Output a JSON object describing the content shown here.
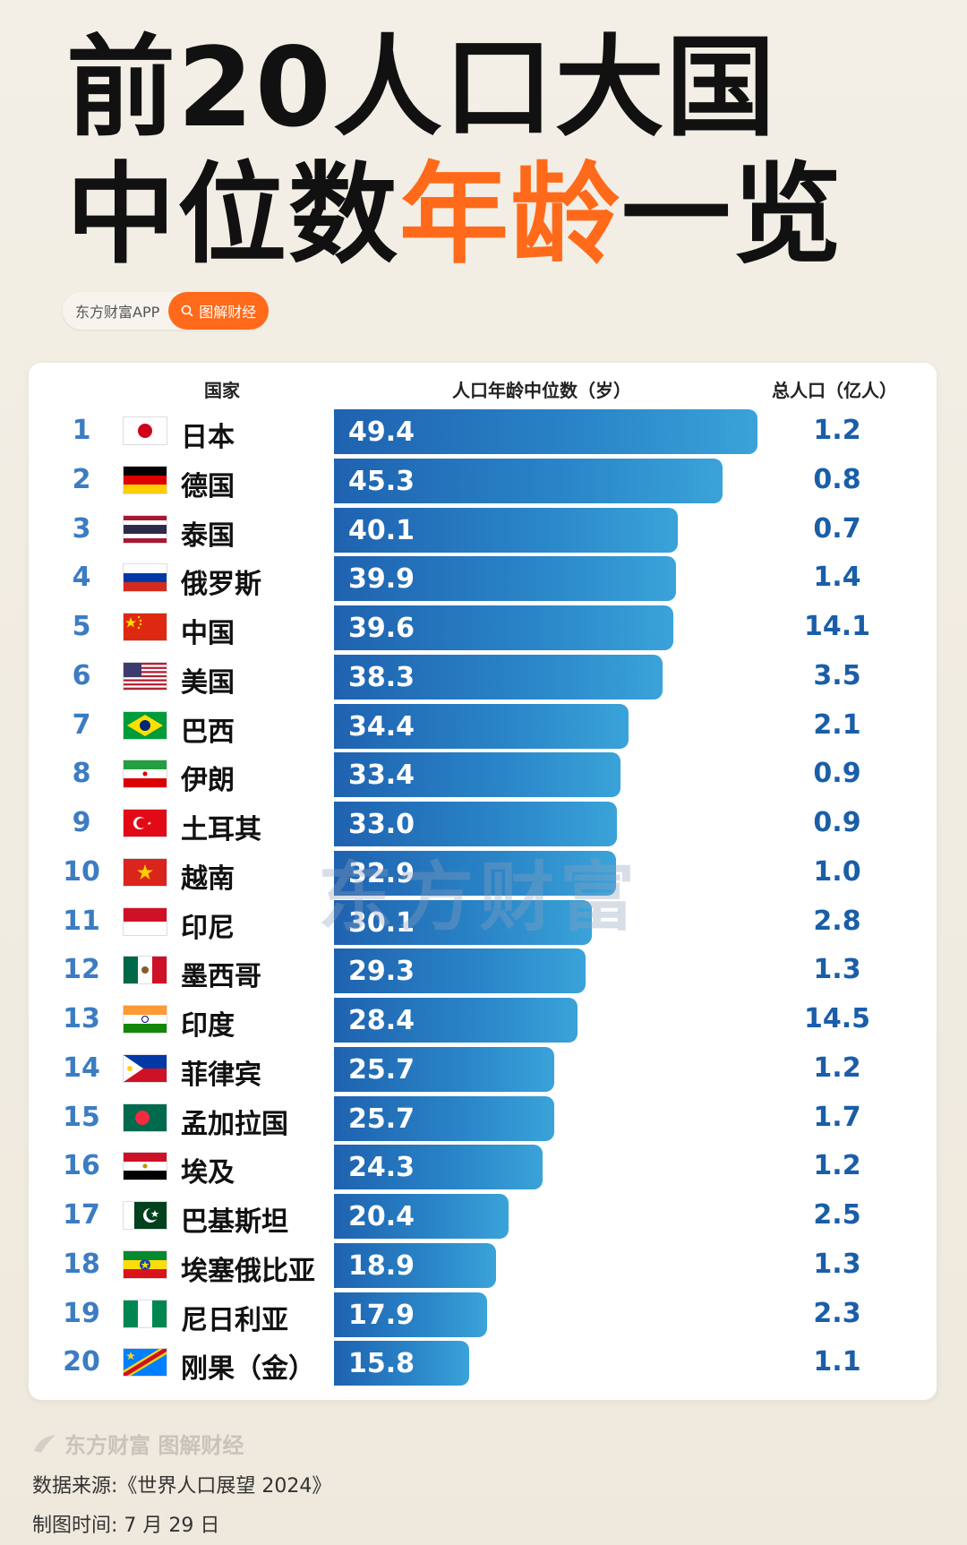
{
  "title": {
    "line1": "前20人口大国",
    "line2_a": "中位数",
    "line2_b": "年龄",
    "line2_c": "一览"
  },
  "brand": {
    "app": "东方财富APP",
    "search": "图解财经"
  },
  "headers": {
    "country": "国家",
    "median": "人口年龄中位数（岁）",
    "population": "总人口（亿人）"
  },
  "watermark": "东方财富",
  "footer": {
    "brand": "东方财富 图解财经",
    "source": "数据来源:《世界人口展望 2024》",
    "date": "制图时间: 7 月 29 日"
  },
  "colors": {
    "accent": "#ff6a1a",
    "bar_dark": "#1f62b0",
    "bar_light": "#3aa3d9",
    "rank": "#3c7cc2",
    "pop": "#1a5ea8"
  },
  "chart_data": {
    "type": "bar",
    "orientation": "horizontal",
    "title": "前20人口大国中位数年龄一览",
    "ylabel": "人口年龄中位数（岁）",
    "rows": [
      {
        "rank": "1",
        "country": "日本",
        "flag": "japan",
        "median": 49.4,
        "population": "1.2"
      },
      {
        "rank": "2",
        "country": "德国",
        "flag": "germany",
        "median": 45.3,
        "population": "0.8"
      },
      {
        "rank": "3",
        "country": "泰国",
        "flag": "thailand",
        "median": 40.1,
        "population": "0.7"
      },
      {
        "rank": "4",
        "country": "俄罗斯",
        "flag": "russia",
        "median": 39.9,
        "population": "1.4"
      },
      {
        "rank": "5",
        "country": "中国",
        "flag": "china",
        "median": 39.6,
        "population": "14.1"
      },
      {
        "rank": "6",
        "country": "美国",
        "flag": "usa",
        "median": 38.3,
        "population": "3.5"
      },
      {
        "rank": "7",
        "country": "巴西",
        "flag": "brazil",
        "median": 34.4,
        "population": "2.1"
      },
      {
        "rank": "8",
        "country": "伊朗",
        "flag": "iran",
        "median": 33.4,
        "population": "0.9"
      },
      {
        "rank": "9",
        "country": "土耳其",
        "flag": "turkey",
        "median": 33.0,
        "population": "0.9"
      },
      {
        "rank": "10",
        "country": "越南",
        "flag": "vietnam",
        "median": 32.9,
        "population": "1.0"
      },
      {
        "rank": "11",
        "country": "印尼",
        "flag": "indonesia",
        "median": 30.1,
        "population": "2.8"
      },
      {
        "rank": "12",
        "country": "墨西哥",
        "flag": "mexico",
        "median": 29.3,
        "population": "1.3"
      },
      {
        "rank": "13",
        "country": "印度",
        "flag": "india",
        "median": 28.4,
        "population": "14.5"
      },
      {
        "rank": "14",
        "country": "菲律宾",
        "flag": "philippines",
        "median": 25.7,
        "population": "1.2"
      },
      {
        "rank": "15",
        "country": "孟加拉国",
        "flag": "bangladesh",
        "median": 25.7,
        "population": "1.7"
      },
      {
        "rank": "16",
        "country": "埃及",
        "flag": "egypt",
        "median": 24.3,
        "population": "1.2"
      },
      {
        "rank": "17",
        "country": "巴基斯坦",
        "flag": "pakistan",
        "median": 20.4,
        "population": "2.5"
      },
      {
        "rank": "18",
        "country": "埃塞俄比亚",
        "flag": "ethiopia",
        "median": 18.9,
        "population": "1.3"
      },
      {
        "rank": "19",
        "country": "尼日利亚",
        "flag": "nigeria",
        "median": 17.9,
        "population": "2.3"
      },
      {
        "rank": "20",
        "country": "刚果（金）",
        "flag": "drcongo",
        "median": 15.8,
        "population": "1.1"
      }
    ]
  }
}
